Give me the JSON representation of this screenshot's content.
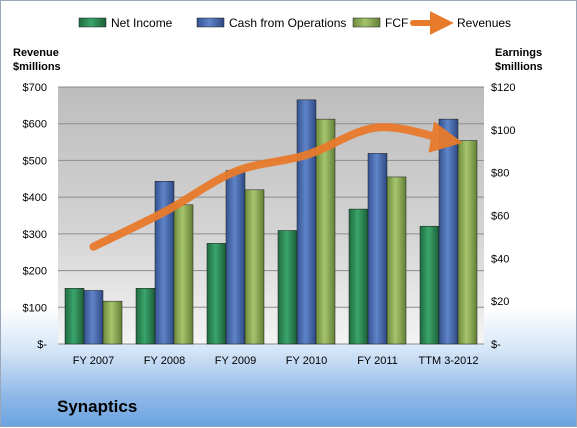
{
  "chart_data": {
    "type": "bar",
    "title": "",
    "categories": [
      "FY 2007",
      "FY 2008",
      "FY 2009",
      "FY 2010",
      "FY 2011",
      "TTM 3-2012"
    ],
    "left_axis": {
      "label_line1": "Revenue",
      "label_line2": "$millions",
      "min": 0,
      "max": 700,
      "step": 100,
      "tick_labels": [
        "$-",
        "$100",
        "$200",
        "$300",
        "$400",
        "$500",
        "$600",
        "$700"
      ]
    },
    "right_axis": {
      "label_line1": "Earnings",
      "label_line2": "$millions",
      "min": 0,
      "max": 120,
      "step": 20,
      "tick_labels": [
        "$-",
        "$20",
        "$40",
        "$60",
        "$80",
        "$100",
        "$120"
      ]
    },
    "series": [
      {
        "name": "Net Income",
        "type": "bar",
        "axis": "right",
        "color": "#2e8b57",
        "values": [
          26,
          26,
          47,
          53,
          63,
          55
        ]
      },
      {
        "name": "Cash from Operations",
        "type": "bar",
        "axis": "right",
        "color": "#4a6fb5",
        "values": [
          25,
          76,
          81,
          114,
          89,
          105
        ]
      },
      {
        "name": "FCF",
        "type": "bar",
        "axis": "right",
        "color": "#8fb05a",
        "values": [
          20,
          65,
          72,
          105,
          78,
          95
        ]
      },
      {
        "name": "Revenues",
        "type": "line",
        "axis": "left",
        "color": "#e87a2b",
        "values": [
          265,
          360,
          470,
          515,
          590,
          555
        ]
      }
    ],
    "grid": true,
    "legend_position": "top"
  },
  "company_name": "Synaptics"
}
